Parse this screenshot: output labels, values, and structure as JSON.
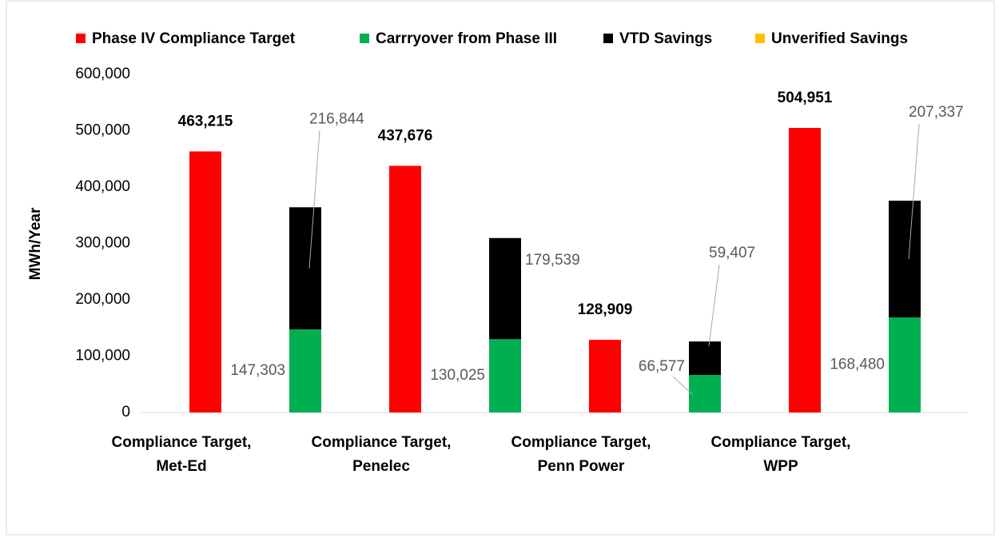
{
  "chart_data": {
    "type": "grouped_stacked_bar",
    "y_label": "MWh/Year",
    "categories": [
      "Compliance Target, Met-Ed",
      "Compliance Target, Penelec",
      "Compliance Target, Penn Power",
      "Compliance Target, WPP"
    ],
    "series": [
      {
        "name": "Phase IV Compliance Target",
        "color": "#ff0000",
        "stack": "target",
        "values": [
          463215,
          437676,
          128909,
          504951
        ],
        "value_labels": [
          "463,215",
          "437,676",
          "128,909",
          "504,951"
        ]
      },
      {
        "name": "Carrryover from Phase III",
        "color": "#00b050",
        "stack": "savings",
        "values": [
          147303,
          130025,
          66577,
          168480
        ],
        "value_labels": [
          "147,303",
          "130,025",
          "66,577",
          "168,480"
        ]
      },
      {
        "name": "VTD Savings",
        "color": "#000000",
        "stack": "savings",
        "values": [
          216844,
          179539,
          59407,
          207337
        ],
        "value_labels": [
          "216,844",
          "179,539",
          "59,407",
          "207,337"
        ]
      },
      {
        "name": "Unverified Savings",
        "color": "#ffc000",
        "stack": "savings",
        "values": [
          null,
          null,
          null,
          null
        ]
      }
    ],
    "ylim": [
      0,
      600000
    ],
    "yticks": [
      0,
      {
        "value": 100000,
        "label": "100,000"
      },
      {
        "value": 200000,
        "label": "200,000"
      },
      {
        "value": 300000,
        "label": "300,000"
      },
      {
        "value": 400000,
        "label": "400,000"
      },
      {
        "value": 500000,
        "label": "500,000"
      },
      {
        "value": 600000,
        "label": "600,000"
      }
    ],
    "legend": "top"
  }
}
